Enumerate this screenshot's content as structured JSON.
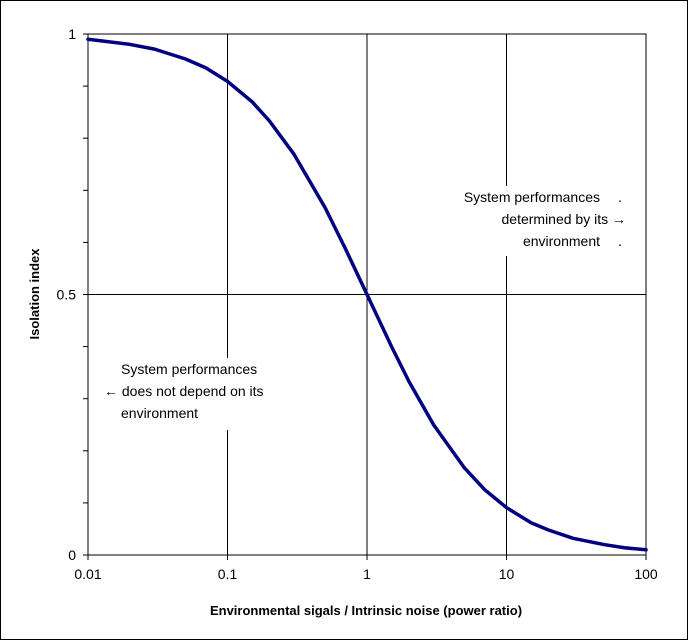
{
  "chart_data": {
    "type": "line",
    "title": "",
    "xlabel": "Environmental sigals / Intrinsic noise (power ratio)",
    "ylabel": "Isolation index",
    "xscale": "log",
    "xlim": [
      0.01,
      100
    ],
    "ylim": [
      0,
      1
    ],
    "xticks": [
      0.01,
      0.1,
      1,
      10,
      100
    ],
    "xtick_labels": [
      "0.01",
      "0.1",
      "1",
      "10",
      "100"
    ],
    "yticks": [
      0,
      0.5,
      1
    ],
    "ytick_labels": [
      "0",
      "0.5",
      "1"
    ],
    "grid": true,
    "legend": "none",
    "series": [
      {
        "color": "#000080",
        "x": [
          0.01,
          0.02,
          0.03,
          0.05,
          0.07,
          0.1,
          0.15,
          0.2,
          0.3,
          0.5,
          0.7,
          1,
          1.5,
          2,
          3,
          5,
          7,
          10,
          15,
          20,
          30,
          50,
          70,
          100
        ],
        "y": [
          0.99,
          0.98,
          0.971,
          0.952,
          0.935,
          0.909,
          0.87,
          0.833,
          0.769,
          0.667,
          0.588,
          0.5,
          0.4,
          0.333,
          0.25,
          0.167,
          0.125,
          0.091,
          0.062,
          0.048,
          0.032,
          0.02,
          0.014,
          0.01
        ]
      }
    ],
    "annotations": [
      {
        "lines": [
          "System performances",
          "determined by its →",
          "environment"
        ],
        "trailing_dots": [
          ".",
          "",
          "."
        ],
        "align": "right"
      },
      {
        "lines": [
          "System performances",
          "← does not depend on its",
          "environment"
        ],
        "align": "left"
      }
    ]
  }
}
